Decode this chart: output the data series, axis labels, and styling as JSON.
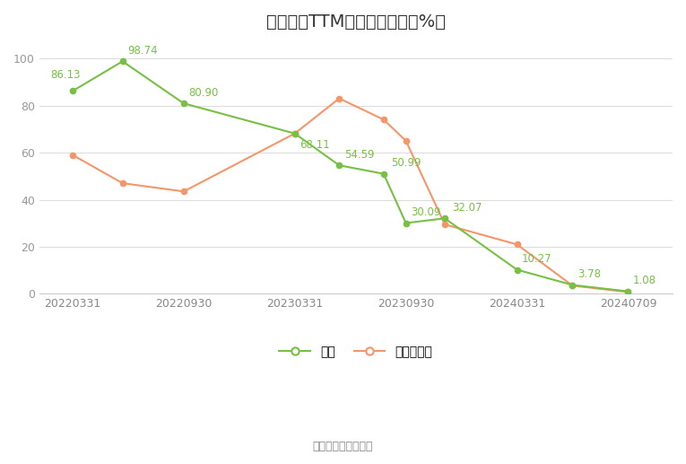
{
  "title": "市销率（TTM）历史百分位（%）",
  "source": "数据来源：恒生聚源",
  "company_label": "公司",
  "industry_label": "行业中位数",
  "x_labels": [
    "20220331",
    "20220930",
    "20230331",
    "20230930",
    "20240331",
    "20240709"
  ],
  "comp_x": [
    0,
    0.45,
    1,
    2,
    2.4,
    2.8,
    3,
    3.35,
    4,
    4.5,
    5
  ],
  "comp_y": [
    86.13,
    98.74,
    80.9,
    68.11,
    54.59,
    50.99,
    30.09,
    32.07,
    10.27,
    3.78,
    1.08
  ],
  "ind_x": [
    0,
    0.45,
    1,
    2,
    2.4,
    2.8,
    3,
    3.35,
    4,
    4.5,
    5
  ],
  "ind_y": [
    59.0,
    47.0,
    43.5,
    68.11,
    83.0,
    74.0,
    65.0,
    29.5,
    21.0,
    3.5,
    0.8
  ],
  "comp_annotations": [
    [
      0,
      86.13,
      "86.13",
      -18,
      8
    ],
    [
      0.45,
      98.74,
      "98.74",
      4,
      4
    ],
    [
      1,
      80.9,
      "80.90",
      4,
      4
    ],
    [
      2,
      68.11,
      "68.11",
      4,
      -14
    ],
    [
      2.4,
      54.59,
      "54.59",
      4,
      4
    ],
    [
      2.8,
      50.99,
      "50.99",
      6,
      4
    ],
    [
      3,
      30.09,
      "30.09",
      4,
      4
    ],
    [
      3.35,
      32.07,
      "32.07",
      6,
      4
    ],
    [
      4,
      10.27,
      "10.27",
      4,
      4
    ],
    [
      4.5,
      3.78,
      "3.78",
      4,
      4
    ],
    [
      5,
      1.08,
      "1.08",
      4,
      4
    ]
  ],
  "company_color": "#77C043",
  "industry_color": "#F4956A",
  "ylim": [
    0,
    107
  ],
  "yticks": [
    0,
    20,
    40,
    60,
    80,
    100
  ],
  "background_color": "#ffffff",
  "grid_color": "#dddddd",
  "title_fontsize": 14,
  "tick_fontsize": 9,
  "annotation_fontsize": 8.5,
  "legend_fontsize": 10,
  "source_fontsize": 9
}
